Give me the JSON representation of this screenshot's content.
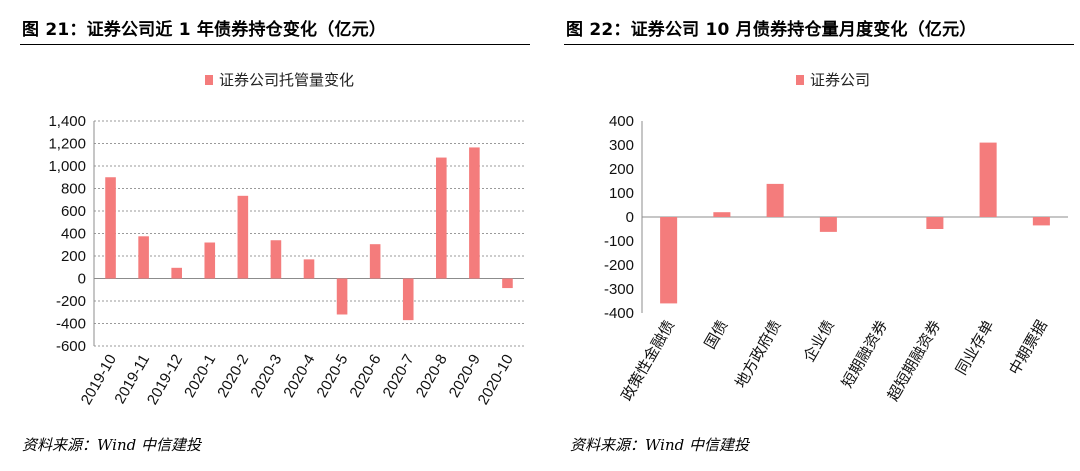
{
  "left": {
    "title": "图 21：证券公司近 1 年债券持仓变化（亿元）",
    "source": "资料来源：Wind 中信建投",
    "chart_data": {
      "type": "bar",
      "categories": [
        "2019-10",
        "2019-11",
        "2019-12",
        "2020-1",
        "2020-2",
        "2020-3",
        "2020-4",
        "2020-5",
        "2020-6",
        "2020-7",
        "2020-8",
        "2020-9",
        "2020-10"
      ],
      "series": [
        {
          "name": "证券公司托管量变化",
          "values": [
            900,
            375,
            95,
            320,
            735,
            340,
            170,
            -320,
            305,
            -370,
            1075,
            1165,
            -85
          ]
        }
      ],
      "ylim": [
        -600,
        1400
      ],
      "yticks": [
        -600,
        -400,
        -200,
        0,
        200,
        400,
        600,
        800,
        1000,
        1200,
        1400
      ],
      "ytick_labels": [
        "-600",
        "-400",
        "-200",
        "0",
        "200",
        "400",
        "600",
        "800",
        "1,000",
        "1,200",
        "1,400"
      ],
      "grid": true,
      "legend": "top-center",
      "bar_color": "#F47C7C"
    }
  },
  "right": {
    "title": "图 22：证券公司 10 月债券持仓量月度变化（亿元）",
    "source": "资料来源：Wind 中信建投",
    "chart_data": {
      "type": "bar",
      "categories": [
        "政策性金融债",
        "国债",
        "地方政府债",
        "企业债",
        "短期融资券",
        "超短期融资券",
        "同业存单",
        "中期票据"
      ],
      "series": [
        {
          "name": "证券公司",
          "values": [
            -360,
            20,
            138,
            -62,
            0,
            -50,
            310,
            -35
          ]
        }
      ],
      "ylim": [
        -400,
        400
      ],
      "yticks": [
        -400,
        -300,
        -200,
        -100,
        0,
        100,
        200,
        300,
        400
      ],
      "ytick_labels": [
        "-400",
        "-300",
        "-200",
        "-100",
        "0",
        "100",
        "200",
        "300",
        "400"
      ],
      "grid": false,
      "legend": "top-center",
      "bar_color": "#F47C7C"
    }
  }
}
